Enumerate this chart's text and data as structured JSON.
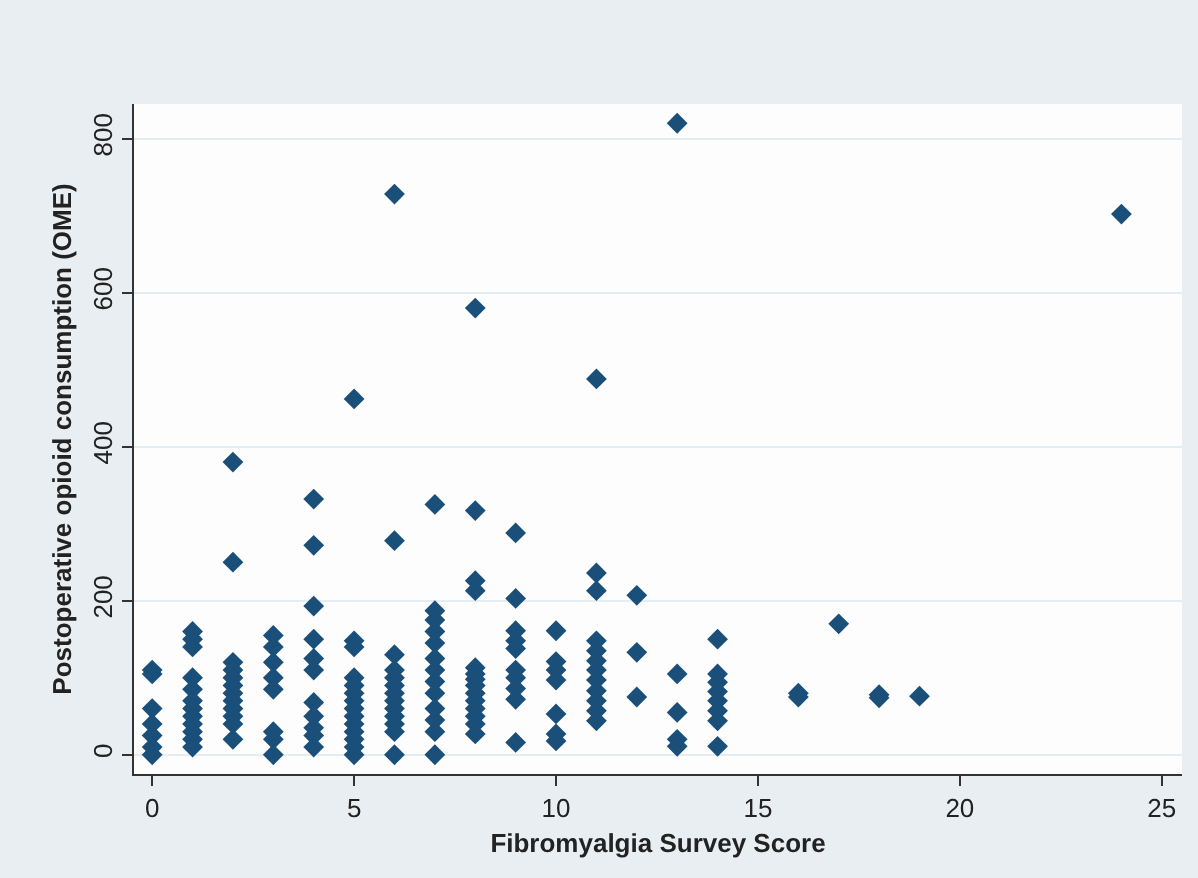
{
  "chart_data": {
    "type": "scatter",
    "xlabel": "Fibromyalgia Survey Score",
    "ylabel": "Postoperative opioid consumption (OME)",
    "marker": "diamond",
    "grid": "y",
    "legend": false,
    "xlim": [
      -0.45,
      25.5
    ],
    "xticks": [
      0,
      5,
      10,
      15,
      20,
      25
    ],
    "ylim": [
      -25,
      845
    ],
    "yticks": [
      0,
      200,
      400,
      600,
      800
    ],
    "series": [
      {
        "color": "#1a4f7a",
        "x": [
          0,
          0,
          0,
          0,
          0,
          0,
          0,
          1,
          1,
          1,
          1,
          1,
          1,
          1,
          1,
          1,
          1,
          1,
          1,
          2,
          2,
          2,
          2,
          2,
          2,
          2,
          2,
          2,
          2,
          2,
          2,
          3,
          3,
          3,
          3,
          3,
          3,
          3,
          3,
          4,
          4,
          4,
          4,
          4,
          4,
          4,
          4,
          4,
          4,
          4,
          5,
          5,
          5,
          5,
          5,
          5,
          5,
          5,
          5,
          5,
          5,
          5,
          5,
          5,
          6,
          6,
          6,
          6,
          6,
          6,
          6,
          6,
          6,
          6,
          6,
          6,
          6,
          7,
          7,
          7,
          7,
          7,
          7,
          7,
          7,
          7,
          7,
          7,
          7,
          7,
          8,
          8,
          8,
          8,
          8,
          8,
          8,
          8,
          8,
          8,
          8,
          8,
          8,
          8,
          9,
          9,
          9,
          9,
          9,
          9,
          9,
          9,
          9,
          9,
          10,
          10,
          10,
          10,
          10,
          10,
          10,
          11,
          11,
          11,
          11,
          11,
          11,
          11,
          11,
          11,
          11,
          11,
          11,
          12,
          12,
          12,
          13,
          13,
          13,
          13,
          13,
          14,
          14,
          14,
          14,
          14,
          14,
          14,
          14,
          16,
          16,
          17,
          18,
          18,
          19,
          24
        ],
        "values": [
          110,
          105,
          60,
          40,
          25,
          10,
          0,
          160,
          150,
          140,
          100,
          85,
          70,
          60,
          50,
          40,
          30,
          20,
          10,
          380,
          250,
          120,
          110,
          100,
          90,
          80,
          70,
          60,
          50,
          40,
          20,
          155,
          140,
          120,
          100,
          85,
          30,
          20,
          0,
          332,
          272,
          193,
          150,
          125,
          110,
          68,
          50,
          35,
          25,
          10,
          462,
          148,
          140,
          100,
          90,
          80,
          70,
          60,
          50,
          40,
          30,
          20,
          10,
          0,
          728,
          278,
          130,
          110,
          100,
          90,
          80,
          70,
          60,
          50,
          40,
          30,
          0,
          325,
          187,
          175,
          160,
          145,
          125,
          110,
          95,
          80,
          60,
          45,
          30,
          0,
          580,
          317,
          226,
          213,
          113,
          105,
          98,
          90,
          80,
          70,
          60,
          50,
          40,
          27,
          288,
          203,
          161,
          148,
          138,
          110,
          100,
          86,
          72,
          16,
          161,
          121,
          110,
          97,
          53,
          27,
          18,
          488,
          236,
          213,
          148,
          135,
          122,
          110,
          97,
          83,
          70,
          57,
          44,
          207,
          133,
          75,
          820,
          105,
          55,
          20,
          11,
          150,
          105,
          94,
          82,
          70,
          57,
          44,
          11,
          80,
          75,
          170,
          78,
          74,
          76,
          702
        ]
      }
    ]
  }
}
